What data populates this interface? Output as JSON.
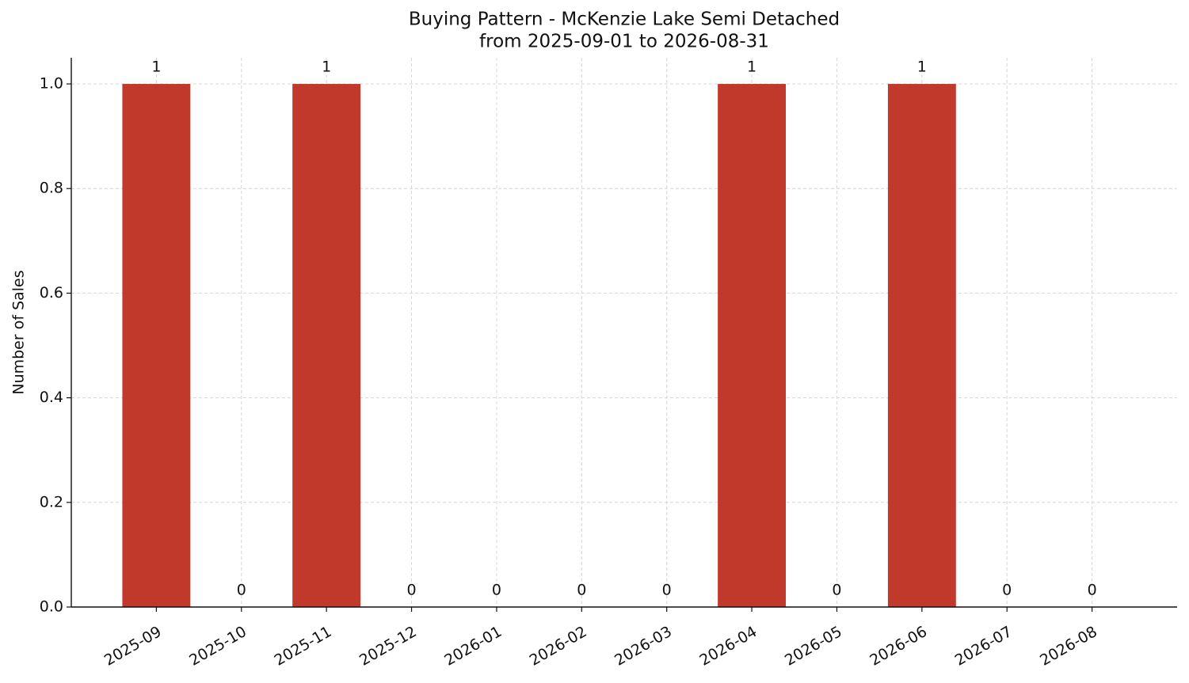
{
  "chart_data": {
    "type": "bar",
    "title": "Buying Pattern - McKenzie Lake Semi Detached",
    "subtitle": "from 2025-09-01 to 2026-08-31",
    "y_label": "Number of Sales",
    "categories": [
      "2025-09",
      "2025-10",
      "2025-11",
      "2025-12",
      "2026-01",
      "2026-02",
      "2026-03",
      "2026-04",
      "2026-05",
      "2026-06",
      "2026-07",
      "2026-08"
    ],
    "values": [
      1,
      0,
      1,
      0,
      0,
      0,
      0,
      1,
      0,
      1,
      0,
      0
    ],
    "color": "#c0392b",
    "ylim": [
      0,
      1.05
    ],
    "yticks": [
      {
        "value": 0,
        "label": "0.0"
      },
      0.2,
      0.4,
      0.6,
      0.8,
      {
        "value": 1,
        "label": "1.0"
      }
    ],
    "grid": true
  }
}
